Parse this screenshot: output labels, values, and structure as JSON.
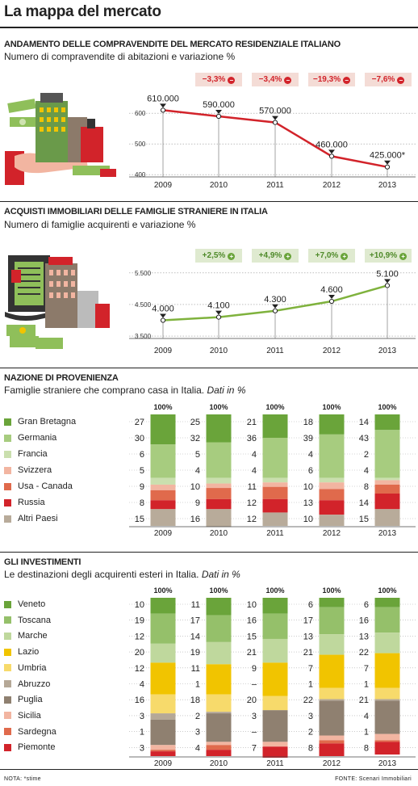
{
  "page": {
    "title": "La mappa del mercato",
    "note": "NOTA: *stime",
    "source": "FONTE: Scenari Immobiliari"
  },
  "colors": {
    "red_line": "#d2232a",
    "green_line": "#7fb23d"
  },
  "sections": {
    "compravendite": {
      "title": "ANDAMENTO DELLE COMPRAVENDITE DEL MERCATO RESIDENZIALE ITALIANO",
      "subtitle": "Numero di compravendite di abitazioni e variazione %",
      "badges": [
        "−3,3%",
        "−3,4%",
        "−19,3%",
        "−7,6%"
      ],
      "badge_icon": "minus-circle-icon"
    },
    "acquisti": {
      "title": "ACQUISTI IMMOBILIARI DELLE FAMIGLIE STRANIERE IN ITALIA",
      "subtitle": "Numero di famiglie acquirenti e variazione %",
      "badges": [
        "+2,5%",
        "+4,9%",
        "+7,0%",
        "+10,9%"
      ],
      "badge_icon": "plus-circle-icon"
    },
    "nazione": {
      "title": "NAZIONE DI PROVENIENZA",
      "subtitle": "Famiglie straniere che comprano casa in Italia.",
      "subtitle_em": "Dati in %"
    },
    "investimenti": {
      "title": "GLI INVESTIMENTI",
      "subtitle": "Le destinazioni degli acquirenti esteri in Italia.",
      "subtitle_em": "Dati in %"
    }
  },
  "chart_data": [
    {
      "type": "line",
      "x": [
        "2009",
        "2010",
        "2011",
        "2012",
        "2013"
      ],
      "values": [
        610000,
        590000,
        570000,
        460000,
        425000
      ],
      "data_labels": [
        "610.000",
        "590.000",
        "570.000",
        "460.000",
        "425.000*"
      ],
      "y_ticks": [
        "600",
        "500",
        "400"
      ],
      "y_tick_values": [
        600000,
        500000,
        400000
      ],
      "ylim": [
        390000,
        640000
      ],
      "color": "#d2232a"
    },
    {
      "type": "line",
      "x": [
        "2009",
        "2010",
        "2011",
        "2012",
        "2013"
      ],
      "values": [
        4000,
        4100,
        4300,
        4600,
        5100
      ],
      "data_labels": [
        "4.000",
        "4.100",
        "4.300",
        "4.600",
        "5.100"
      ],
      "y_ticks": [
        "5.500",
        "4.500",
        "3.500"
      ],
      "y_tick_values": [
        5500,
        4500,
        3500
      ],
      "ylim": [
        3400,
        5700
      ],
      "color": "#7fb23d"
    },
    {
      "type": "bar",
      "stacked": true,
      "categories": [
        "2009",
        "2010",
        "2011",
        "2012",
        "2013"
      ],
      "total_label": "100%",
      "series": [
        {
          "name": "Gran Bretagna",
          "color": "#6aa43a",
          "values": [
            27,
            25,
            21,
            18,
            14
          ]
        },
        {
          "name": "Germania",
          "color": "#a7cc7f",
          "values": [
            30,
            32,
            36,
            39,
            43
          ]
        },
        {
          "name": "Francia",
          "color": "#cadfae",
          "values": [
            6,
            5,
            4,
            4,
            2
          ]
        },
        {
          "name": "Svizzera",
          "color": "#f2b5a1",
          "values": [
            5,
            4,
            4,
            6,
            4
          ]
        },
        {
          "name": "Usa - Canada",
          "color": "#e06a4c",
          "values": [
            9,
            10,
            11,
            10,
            8
          ]
        },
        {
          "name": "Russia",
          "color": "#d2232a",
          "values": [
            8,
            9,
            12,
            13,
            14
          ]
        },
        {
          "name": "Altri Paesi",
          "color": "#b8ab9a",
          "values": [
            15,
            16,
            12,
            10,
            15
          ]
        }
      ]
    },
    {
      "type": "bar",
      "stacked": true,
      "categories": [
        "2009",
        "2010",
        "2011",
        "2012",
        "2013"
      ],
      "total_label": "100%",
      "series": [
        {
          "name": "Veneto",
          "color": "#6aa43a",
          "values": [
            10,
            11,
            10,
            6,
            6
          ]
        },
        {
          "name": "Toscana",
          "color": "#95c06a",
          "values": [
            19,
            17,
            16,
            17,
            16
          ]
        },
        {
          "name": "Marche",
          "color": "#bfd89d",
          "values": [
            12,
            14,
            15,
            13,
            13
          ]
        },
        {
          "name": "Lazio",
          "color": "#f1c400",
          "values": [
            20,
            19,
            21,
            21,
            22
          ]
        },
        {
          "name": "Umbria",
          "color": "#f7da6b",
          "values": [
            12,
            11,
            9,
            7,
            7
          ]
        },
        {
          "name": "Abruzzo",
          "color": "#b5a897",
          "values": [
            4,
            1,
            null,
            1,
            1
          ]
        },
        {
          "name": "Puglia",
          "color": "#8f8070",
          "values": [
            16,
            18,
            20,
            22,
            21
          ]
        },
        {
          "name": "Sicilia",
          "color": "#f2b5a1",
          "values": [
            3,
            2,
            3,
            3,
            4
          ]
        },
        {
          "name": "Sardegna",
          "color": "#e06a4c",
          "values": [
            1,
            3,
            null,
            2,
            1
          ]
        },
        {
          "name": "Piemonte",
          "color": "#d2232a",
          "values": [
            3,
            4,
            7,
            8,
            8
          ]
        }
      ],
      "value_labels": [
        [
          "10",
          "19",
          "12",
          "20",
          "12",
          "4",
          "16",
          "3",
          "1",
          "3"
        ],
        [
          "11",
          "17",
          "14",
          "19",
          "11",
          "1",
          "18",
          "2",
          "3",
          "4"
        ],
        [
          "10",
          "16",
          "15",
          "21",
          "9",
          "–",
          "20",
          "3",
          "–",
          "7"
        ],
        [
          "6",
          "17",
          "13",
          "21",
          "7",
          "1",
          "22",
          "3",
          "2",
          "8"
        ],
        [
          "6",
          "16",
          "13",
          "22",
          "7",
          "1",
          "21",
          "4",
          "1",
          "8"
        ]
      ]
    }
  ]
}
